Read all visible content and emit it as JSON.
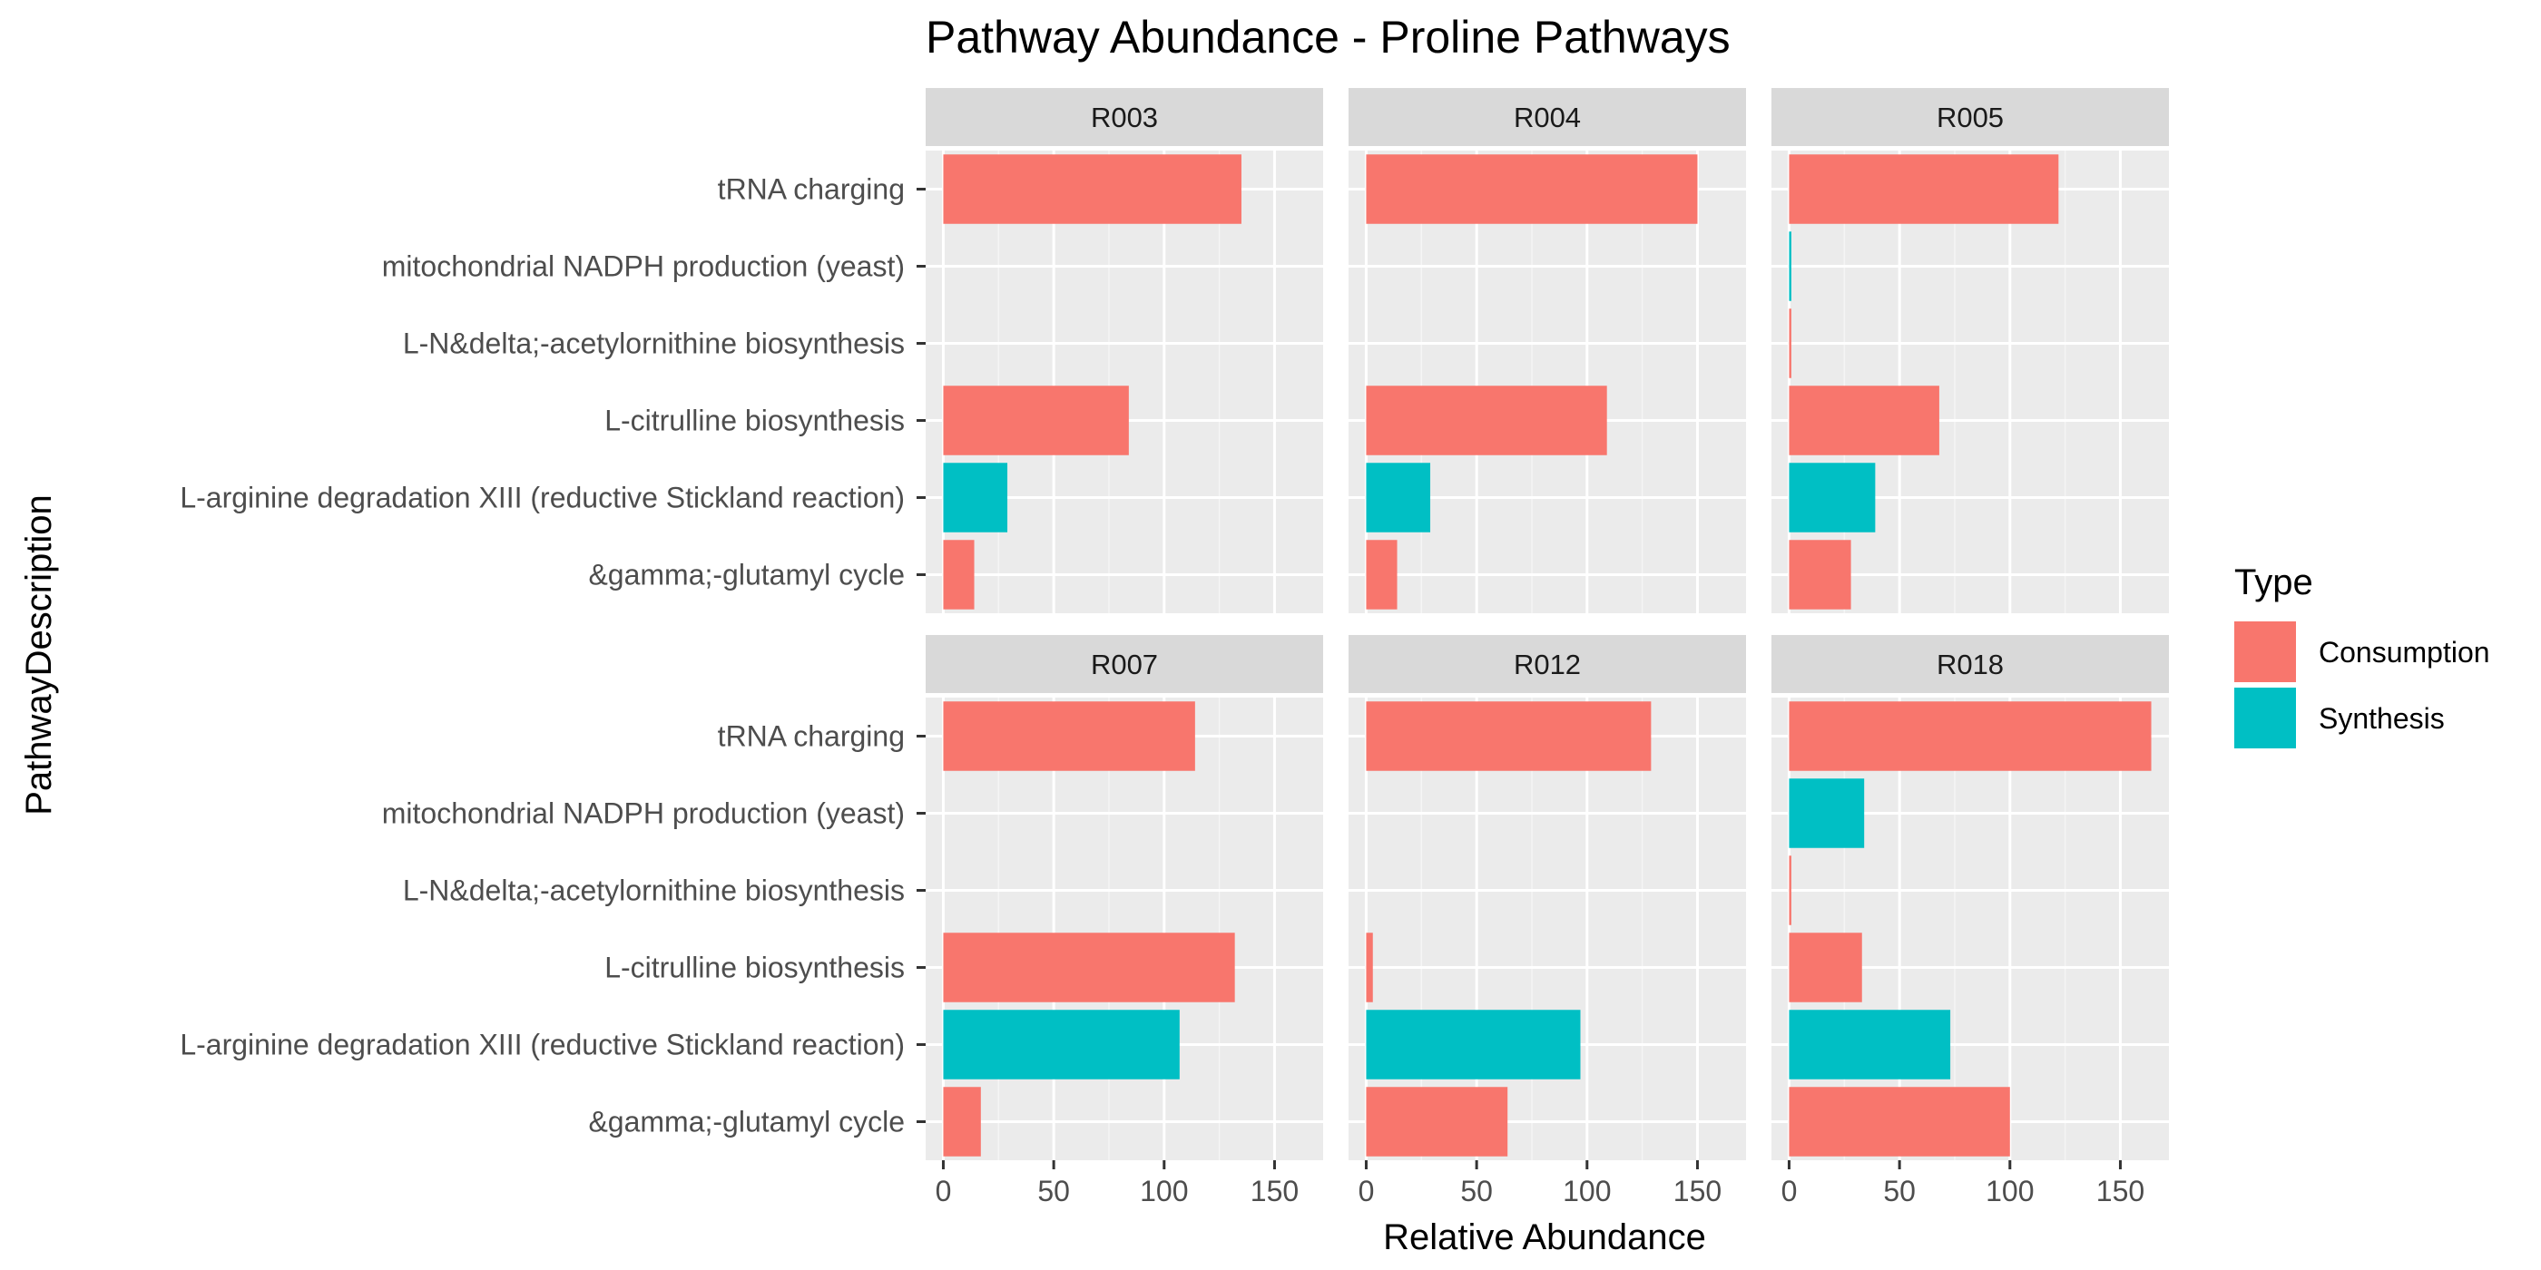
{
  "chart_data": {
    "type": "bar",
    "orientation": "horizontal",
    "title": "Pathway Abundance - Proline Pathways",
    "xlabel": "Relative Abundance",
    "ylabel": "PathwayDescription",
    "xlim": [
      -8,
      172
    ],
    "xticks": [
      0,
      50,
      100,
      150
    ],
    "xtick_labels": [
      "0",
      "50",
      "100",
      "150"
    ],
    "categories": [
      "tRNA charging",
      "mitochondrial NADPH production (yeast)",
      "L-N&delta;-acetylornithine biosynthesis",
      "L-citrulline biosynthesis",
      "L-arginine degradation XIII (reductive Stickland reaction)",
      "&gamma;-glutamyl cycle"
    ],
    "category_type": [
      "Consumption",
      "Synthesis",
      "Consumption",
      "Consumption",
      "Synthesis",
      "Consumption"
    ],
    "legend": {
      "title": "Type",
      "position": "right",
      "items": [
        {
          "label": "Consumption",
          "color": "#F8766D"
        },
        {
          "label": "Synthesis",
          "color": "#00BFC4"
        }
      ]
    },
    "panels": [
      {
        "label": "R003",
        "values": [
          135,
          0,
          0,
          84,
          29,
          14
        ]
      },
      {
        "label": "R004",
        "values": [
          150,
          0,
          0,
          109,
          29,
          14
        ]
      },
      {
        "label": "R005",
        "values": [
          122,
          1,
          1,
          68,
          39,
          28
        ]
      },
      {
        "label": "R007",
        "values": [
          114,
          0,
          0,
          132,
          107,
          17
        ]
      },
      {
        "label": "R012",
        "values": [
          129,
          0,
          0,
          3,
          97,
          64
        ]
      },
      {
        "label": "R018",
        "values": [
          164,
          34,
          1,
          33,
          73,
          100
        ]
      }
    ]
  }
}
